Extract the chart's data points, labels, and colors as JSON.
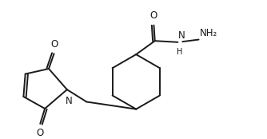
{
  "background": "#ffffff",
  "line_color": "#1a1a1a",
  "line_width": 1.4,
  "font_size": 8.5,
  "font_color": "#1a1a1a",
  "xlim": [
    0.0,
    10.2
  ],
  "ylim": [
    0.8,
    5.8
  ]
}
